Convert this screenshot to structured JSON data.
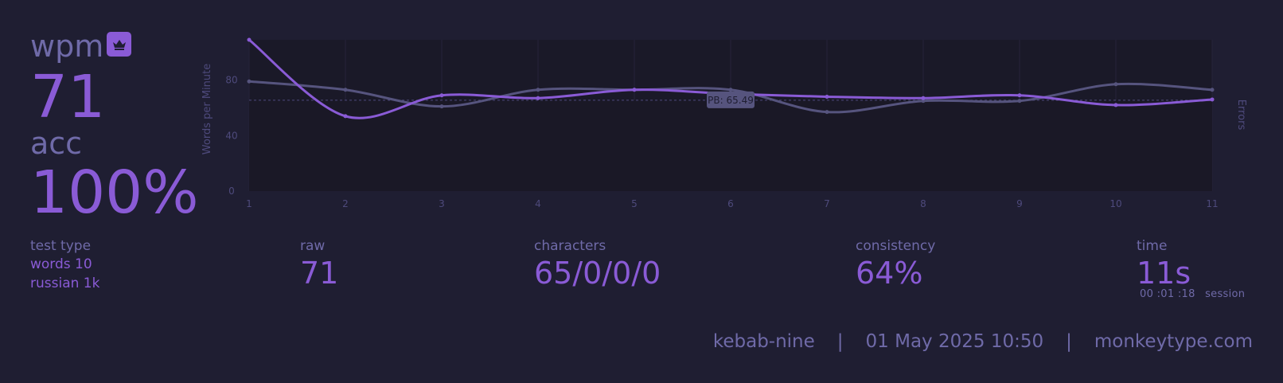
{
  "result": {
    "wpm_label": "wpm",
    "wpm_value": "71",
    "acc_label": "acc",
    "acc_value": "100%",
    "personal_best_icon": "crown-icon"
  },
  "stats": {
    "test_type_label": "test type",
    "test_type_mode": "words 10",
    "test_type_language": "russian 1k",
    "raw_label": "raw",
    "raw_value": "71",
    "characters_label": "characters",
    "characters_value": "65/0/0/0",
    "consistency_label": "consistency",
    "consistency_value": "64%",
    "time_label": "time",
    "time_value": "11s",
    "session_time": "00 :01 :18",
    "session_label": "session"
  },
  "footer": {
    "username": "kebab-nine",
    "date": "01 May 2025 10:50",
    "site": "monkeytype.com"
  },
  "colors": {
    "background": "#1f1e32",
    "accent": "#8a5bd6",
    "muted": "#6f6aa8",
    "raw_line": "#56547e"
  },
  "chart_data": {
    "type": "line",
    "x": [
      1,
      2,
      3,
      4,
      5,
      6,
      7,
      8,
      9,
      10,
      11
    ],
    "series": [
      {
        "name": "wpm",
        "values": [
          109,
          54,
          69,
          67,
          73,
          70,
          68,
          67,
          69,
          62,
          66
        ]
      },
      {
        "name": "raw",
        "values": [
          79,
          73,
          61,
          73,
          73,
          73,
          57,
          65,
          65,
          77,
          73
        ]
      }
    ],
    "ylabel": "Words per Minute",
    "y2label": "Errors",
    "yticks": [
      0,
      40,
      80
    ],
    "ylim": [
      0,
      109
    ],
    "personal_best": 65.49,
    "personal_best_label": "PB: 65.49",
    "grid": true
  }
}
